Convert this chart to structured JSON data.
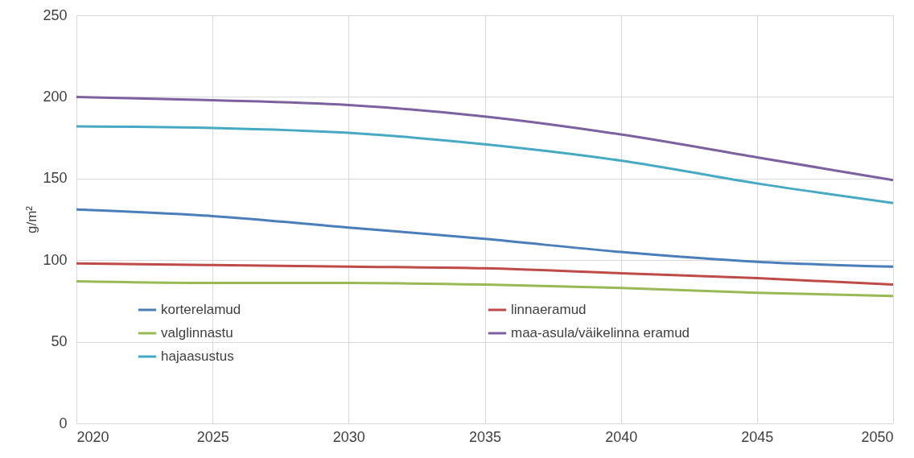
{
  "chart_data": {
    "type": "line",
    "ylabel": "g/m²",
    "x": [
      2020,
      2025,
      2030,
      2035,
      2040,
      2045,
      2050
    ],
    "xlim": [
      2020,
      2050
    ],
    "xticks": [
      2020,
      2025,
      2030,
      2035,
      2040,
      2045,
      2050
    ],
    "ylim": [
      0,
      250
    ],
    "yticks": [
      0,
      50,
      100,
      150,
      200,
      250
    ],
    "grid": true,
    "legend": "bottom left",
    "series": [
      {
        "name": "korterelamud",
        "color": "#4a7ebb",
        "values": [
          131,
          127,
          120,
          113,
          105,
          99,
          96
        ]
      },
      {
        "name": "linnaeramud",
        "color": "#be4b48",
        "values": [
          98,
          97,
          96,
          95,
          92,
          89,
          85
        ]
      },
      {
        "name": "valglinnastu",
        "color": "#98b954",
        "values": [
          87,
          86,
          86,
          85,
          83,
          80,
          78
        ]
      },
      {
        "name": "maa-asula/väikelinna eramud",
        "color": "#7d60a0",
        "values": [
          200,
          198,
          195,
          188,
          177,
          163,
          149
        ]
      },
      {
        "name": "hajaasustus",
        "color": "#46aac5",
        "values": [
          182,
          181,
          178,
          171,
          161,
          147,
          135
        ]
      }
    ]
  }
}
